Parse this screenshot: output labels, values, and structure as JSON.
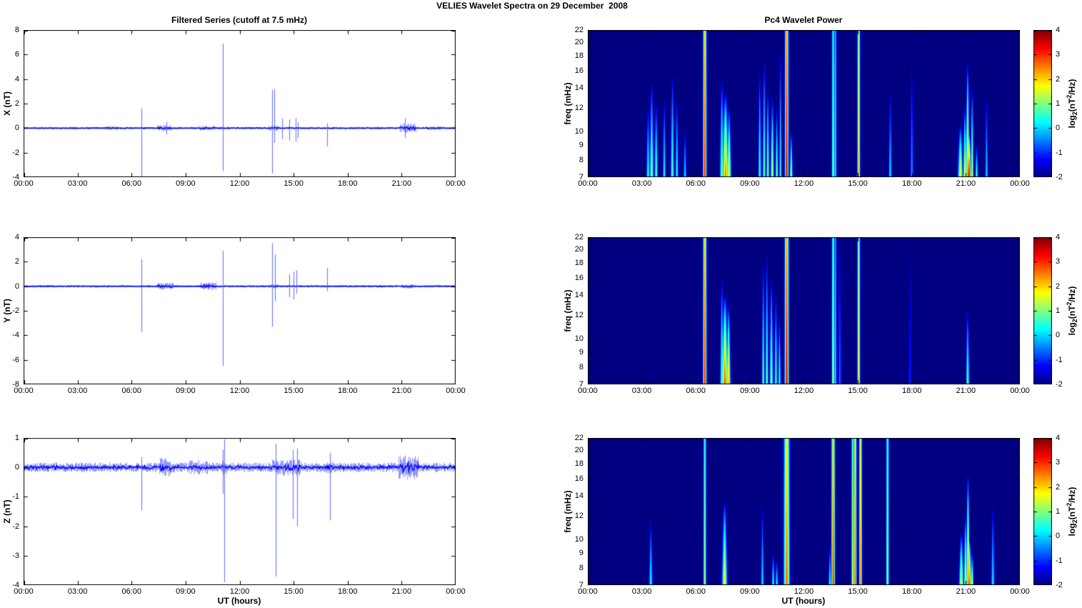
{
  "title": "VELIES Wavelet Spectra on 29 December  2008",
  "figure": {
    "xlabel": "UT (hours)",
    "xtick_hours": [
      0,
      3,
      6,
      9,
      12,
      15,
      18,
      21,
      24
    ],
    "xtick_labels": [
      "00:00",
      "03:00",
      "06:00",
      "09:00",
      "12:00",
      "15:00",
      "18:00",
      "21:00",
      "00:00"
    ]
  },
  "colors": {
    "series_line": "#0000ee",
    "spike_line": "#5060ff",
    "spectrogram_background": "#000080",
    "axis": "#000000",
    "page_background": "#ffffff"
  },
  "colorbar": {
    "range": [
      -2,
      4
    ],
    "ticks": [
      4,
      3,
      2,
      1,
      0,
      -1,
      -2
    ],
    "label_pre": "log",
    "label_sub": "2",
    "label_mid": "(nT",
    "label_sup": "2",
    "label_post": "/Hz)",
    "colormap": "jet"
  },
  "chart_data": [
    {
      "type": "line",
      "panel": "X filtered series",
      "title": "Filtered Series (cutoff at 7.5 mHz)",
      "ylabel": "X (nT)",
      "ylim": [
        -4,
        8
      ],
      "yticks": [
        8,
        6,
        4,
        2,
        0,
        -2,
        -4
      ],
      "x_range_hours": [
        0,
        24
      ],
      "noise_amp": 0.07,
      "bursts": [
        {
          "t0": 4.5,
          "t1": 5.2,
          "amp": 0.12
        },
        {
          "t0": 7.4,
          "t1": 8.2,
          "amp": 0.18
        },
        {
          "t0": 9.7,
          "t1": 10.6,
          "amp": 0.14
        },
        {
          "t0": 13.6,
          "t1": 14.15,
          "amp": 0.15
        },
        {
          "t0": 20.9,
          "t1": 21.8,
          "amp": 0.28
        },
        {
          "t0": 22.3,
          "t1": 23.2,
          "amp": 0.1
        }
      ],
      "spikes": [
        {
          "t": 6.55,
          "hi": 1.6,
          "lo": -4.0
        },
        {
          "t": 7.92,
          "hi": 0.5,
          "lo": -0.5
        },
        {
          "t": 11.05,
          "hi": 6.9,
          "lo": -3.5
        },
        {
          "t": 13.8,
          "hi": 3.1,
          "lo": -3.7
        },
        {
          "t": 13.93,
          "hi": 3.2,
          "lo": -1.2
        },
        {
          "t": 14.35,
          "hi": 0.8,
          "lo": -0.9
        },
        {
          "t": 14.75,
          "hi": 0.7,
          "lo": -1.0
        },
        {
          "t": 15.1,
          "hi": 0.8,
          "lo": -1.1
        },
        {
          "t": 15.25,
          "hi": 0.5,
          "lo": -0.8
        },
        {
          "t": 16.85,
          "hi": 0.4,
          "lo": -1.5
        },
        {
          "t": 21.2,
          "hi": 0.8,
          "lo": -0.8
        }
      ]
    },
    {
      "type": "line",
      "panel": "Y filtered series",
      "title": "",
      "ylabel": "Y (nT)",
      "ylim": [
        -8,
        4
      ],
      "yticks": [
        4,
        2,
        0,
        -2,
        -4,
        -6,
        -8
      ],
      "x_range_hours": [
        0,
        24
      ],
      "noise_amp": 0.07,
      "bursts": [
        {
          "t0": 7.4,
          "t1": 8.3,
          "amp": 0.2
        },
        {
          "t0": 9.8,
          "t1": 10.7,
          "amp": 0.22
        },
        {
          "t0": 13.6,
          "t1": 14.1,
          "amp": 0.12
        },
        {
          "t0": 21.0,
          "t1": 21.7,
          "amp": 0.12
        }
      ],
      "spikes": [
        {
          "t": 6.55,
          "hi": 2.2,
          "lo": -3.7
        },
        {
          "t": 11.05,
          "hi": 2.9,
          "lo": -6.5
        },
        {
          "t": 13.8,
          "hi": 3.5,
          "lo": -3.3
        },
        {
          "t": 13.95,
          "hi": 2.6,
          "lo": -1.2
        },
        {
          "t": 14.75,
          "hi": 1.0,
          "lo": -0.9
        },
        {
          "t": 15.0,
          "hi": 1.2,
          "lo": -1.1
        },
        {
          "t": 15.15,
          "hi": 1.3,
          "lo": -0.6
        },
        {
          "t": 16.85,
          "hi": 1.5,
          "lo": -0.4
        }
      ]
    },
    {
      "type": "line",
      "panel": "Z filtered series",
      "title": "",
      "ylabel": "Z (nT)",
      "ylim": [
        -4,
        1
      ],
      "yticks": [
        1,
        0,
        -1,
        -2,
        -3,
        -4
      ],
      "x_range_hours": [
        0,
        24
      ],
      "noise_amp": 0.11,
      "bursts": [
        {
          "t0": 7.5,
          "t1": 8.2,
          "amp": 0.22
        },
        {
          "t0": 9.2,
          "t1": 10.2,
          "amp": 0.17
        },
        {
          "t0": 11.0,
          "t1": 11.3,
          "amp": 0.2
        },
        {
          "t0": 13.8,
          "t1": 15.4,
          "amp": 0.19
        },
        {
          "t0": 16.8,
          "t1": 17.2,
          "amp": 0.15
        },
        {
          "t0": 20.8,
          "t1": 21.9,
          "amp": 0.28
        }
      ],
      "spikes": [
        {
          "t": 6.55,
          "hi": 0.35,
          "lo": -1.45
        },
        {
          "t": 11.05,
          "hi": 0.6,
          "lo": -0.9
        },
        {
          "t": 11.15,
          "hi": 0.95,
          "lo": -3.9
        },
        {
          "t": 14.0,
          "hi": 0.8,
          "lo": -3.7
        },
        {
          "t": 14.95,
          "hi": 0.6,
          "lo": -1.75
        },
        {
          "t": 15.2,
          "hi": 0.65,
          "lo": -2.0
        },
        {
          "t": 17.0,
          "hi": 0.5,
          "lo": -1.8
        }
      ]
    },
    {
      "type": "heatmap",
      "panel": "X Pc4 wavelet power",
      "title": "Pc4 Wavelet Power",
      "ylabel": "freq (mHz)",
      "ylim": [
        7,
        22
      ],
      "yscale": "log",
      "yticks": [
        22,
        20,
        18,
        16,
        14,
        12,
        10,
        9,
        8,
        7
      ],
      "clim": [
        -2,
        4
      ],
      "events": [
        {
          "t": 6.5,
          "p": 3.3,
          "w": 0.06,
          "type": "line"
        },
        {
          "t": 11.05,
          "p": 3.8,
          "w": 0.06,
          "type": "line"
        },
        {
          "t": 13.63,
          "p": 1.2,
          "w": 0.05,
          "type": "line"
        },
        {
          "t": 13.75,
          "p": 0.6,
          "w": 0.04,
          "type": "line"
        },
        {
          "t": 15.05,
          "p": 2.2,
          "w": 0.05,
          "type": "line"
        },
        {
          "t": 3.35,
          "fmax": 12,
          "p": 0.6,
          "w": 0.06
        },
        {
          "t": 3.55,
          "fmax": 14.5,
          "p": 1.2,
          "w": 0.07
        },
        {
          "t": 3.8,
          "fmax": 12.5,
          "p": 0.9,
          "w": 0.06
        },
        {
          "t": 4.25,
          "fmax": 13,
          "p": 0.5,
          "w": 0.05
        },
        {
          "t": 4.7,
          "fmax": 15.5,
          "p": 0.9,
          "w": 0.06
        },
        {
          "t": 4.95,
          "fmax": 13,
          "p": 0.6,
          "w": 0.05
        },
        {
          "t": 5.4,
          "fmax": 10,
          "p": 0.3,
          "w": 0.05
        },
        {
          "t": 7.45,
          "fmax": 15,
          "p": 1.2,
          "w": 0.07
        },
        {
          "t": 7.65,
          "fmax": 13.5,
          "p": 2.6,
          "w": 0.1
        },
        {
          "t": 7.85,
          "fmax": 12,
          "p": 2.0,
          "w": 0.07
        },
        {
          "t": 9.55,
          "fmax": 16,
          "p": 0.9,
          "w": 0.05
        },
        {
          "t": 9.8,
          "fmax": 17.5,
          "p": 1.1,
          "w": 0.05
        },
        {
          "t": 10.0,
          "fmax": 14,
          "p": 1.3,
          "w": 0.05
        },
        {
          "t": 10.25,
          "fmax": 13,
          "p": 1.6,
          "w": 0.06
        },
        {
          "t": 10.5,
          "fmax": 12,
          "p": 1.1,
          "w": 0.05
        },
        {
          "t": 10.7,
          "fmax": 18.5,
          "p": 0.8,
          "w": 0.04
        },
        {
          "t": 11.3,
          "fmax": 10,
          "p": 1.6,
          "w": 0.05
        },
        {
          "t": 16.8,
          "fmax": 13.5,
          "p": 0.3,
          "w": 0.05
        },
        {
          "t": 18.0,
          "fmax": 16.5,
          "p": -0.2,
          "w": 0.05
        },
        {
          "t": 20.7,
          "fmax": 10.5,
          "p": 1.8,
          "w": 0.09
        },
        {
          "t": 20.95,
          "fmax": 12,
          "p": 2.0,
          "w": 0.06
        },
        {
          "t": 21.1,
          "fmax": 17,
          "p": 2.6,
          "w": 0.06
        },
        {
          "t": 21.18,
          "fmax": 10,
          "p": 3.8,
          "w": 0.07
        },
        {
          "t": 21.35,
          "fmax": 14,
          "p": 1.6,
          "w": 0.05
        },
        {
          "t": 21.6,
          "fmax": 9,
          "p": 0.8,
          "w": 0.05
        },
        {
          "t": 22.15,
          "fmax": 13,
          "p": 0.2,
          "w": 0.05
        }
      ]
    },
    {
      "type": "heatmap",
      "panel": "Y Pc4 wavelet power",
      "title": "",
      "ylabel": "freq (mHz)",
      "ylim": [
        7,
        22
      ],
      "yscale": "log",
      "yticks": [
        22,
        20,
        18,
        16,
        14,
        12,
        10,
        9,
        8,
        7
      ],
      "clim": [
        -2,
        4
      ],
      "events": [
        {
          "t": 6.5,
          "p": 3.3,
          "w": 0.06,
          "type": "line"
        },
        {
          "t": 11.05,
          "p": 3.6,
          "w": 0.07,
          "type": "line"
        },
        {
          "t": 13.63,
          "p": 1.6,
          "w": 0.05,
          "type": "line"
        },
        {
          "t": 13.75,
          "p": 0.4,
          "w": 0.04,
          "type": "line"
        },
        {
          "t": 15.05,
          "p": 2.0,
          "w": 0.05,
          "type": "line"
        },
        {
          "t": 7.45,
          "fmax": 16,
          "p": 1.1,
          "w": 0.06
        },
        {
          "t": 7.62,
          "fmax": 14,
          "p": 2.9,
          "w": 0.1
        },
        {
          "t": 7.82,
          "fmax": 13,
          "p": 2.3,
          "w": 0.07
        },
        {
          "t": 9.75,
          "fmax": 18,
          "p": 0.9,
          "w": 0.05
        },
        {
          "t": 9.95,
          "fmax": 19,
          "p": 1.1,
          "w": 0.05
        },
        {
          "t": 10.2,
          "fmax": 16,
          "p": 1.3,
          "w": 0.06
        },
        {
          "t": 10.45,
          "fmax": 14,
          "p": 0.9,
          "w": 0.05
        },
        {
          "t": 10.65,
          "fmax": 12,
          "p": 0.7,
          "w": 0.05
        },
        {
          "t": 14.0,
          "fmax": 22,
          "p": -0.5,
          "w": 0.05
        },
        {
          "t": 17.9,
          "fmax": 20,
          "p": -1.0,
          "w": 0.05
        },
        {
          "t": 21.1,
          "fmax": 12.5,
          "p": 0.9,
          "w": 0.06
        }
      ]
    },
    {
      "type": "heatmap",
      "panel": "Z Pc4 wavelet power",
      "title": "",
      "ylabel": "freq (mHz)",
      "ylim": [
        7,
        22
      ],
      "yscale": "log",
      "yticks": [
        22,
        20,
        18,
        16,
        14,
        12,
        10,
        9,
        8,
        7
      ],
      "clim": [
        -2,
        4
      ],
      "events": [
        {
          "t": 6.5,
          "p": 1.4,
          "w": 0.05,
          "type": "line"
        },
        {
          "t": 11.05,
          "p": 2.8,
          "w": 0.1,
          "type": "line"
        },
        {
          "t": 13.63,
          "p": 3.3,
          "w": 0.06,
          "type": "line"
        },
        {
          "t": 14.72,
          "p": 1.6,
          "w": 0.05,
          "type": "line"
        },
        {
          "t": 14.85,
          "p": 3.0,
          "w": 0.05,
          "type": "line"
        },
        {
          "t": 15.15,
          "p": 2.7,
          "w": 0.05,
          "type": "line"
        },
        {
          "t": 16.65,
          "p": 1.5,
          "w": 0.05,
          "type": "line"
        },
        {
          "t": 3.5,
          "fmax": 11.5,
          "p": 0.5,
          "w": 0.06
        },
        {
          "t": 7.6,
          "fmax": 13.5,
          "p": 1.9,
          "w": 0.09
        },
        {
          "t": 9.7,
          "fmax": 13,
          "p": 0.3,
          "w": 0.05
        },
        {
          "t": 10.3,
          "fmax": 9,
          "p": 0.6,
          "w": 0.05
        },
        {
          "t": 10.5,
          "fmax": 8.5,
          "p": 0.5,
          "w": 0.05
        },
        {
          "t": 13.45,
          "fmax": 9.5,
          "p": 0.6,
          "w": 0.05
        },
        {
          "t": 20.75,
          "fmax": 10.5,
          "p": 1.7,
          "w": 0.08
        },
        {
          "t": 20.98,
          "fmax": 12,
          "p": 2.2,
          "w": 0.05
        },
        {
          "t": 21.12,
          "fmax": 16.5,
          "p": 2.7,
          "w": 0.06
        },
        {
          "t": 21.2,
          "fmax": 10,
          "p": 3.1,
          "w": 0.07
        },
        {
          "t": 21.35,
          "fmax": 9,
          "p": 1.6,
          "w": 0.05
        },
        {
          "t": 22.5,
          "fmax": 13,
          "p": 0.3,
          "w": 0.06
        }
      ]
    }
  ]
}
